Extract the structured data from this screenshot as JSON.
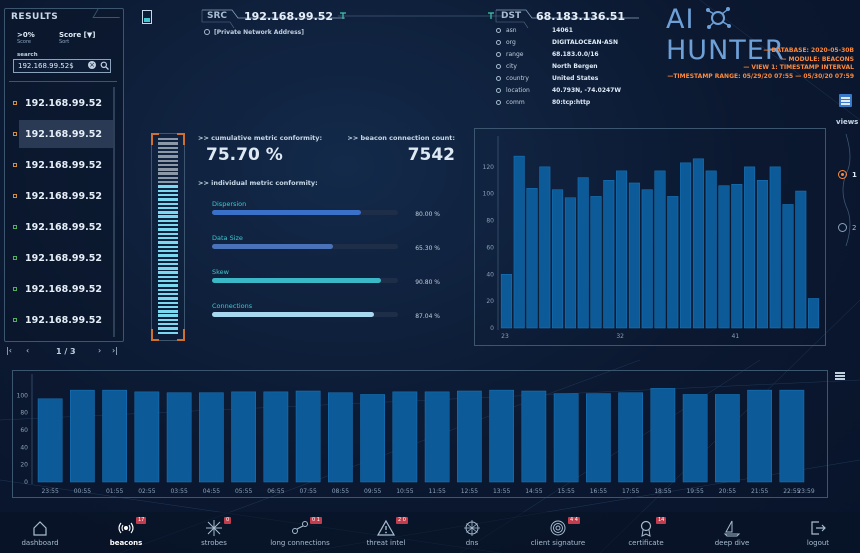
{
  "results": {
    "title": "RESULTS",
    "filter": {
      "value": ">0%",
      "label": "Score"
    },
    "sort": {
      "value": "Score [▼]",
      "label": "Sort"
    },
    "search": {
      "label": "search",
      "value": "192.168.99.52$"
    },
    "items": [
      "192.168.99.52",
      "192.168.99.52",
      "192.168.99.52",
      "192.168.99.52",
      "192.168.99.52",
      "192.168.99.52",
      "192.168.99.52",
      "192.168.99.52"
    ],
    "pager": "1 / 3"
  },
  "header": {
    "src_label": "SRC",
    "src_ip": "192.168.99.52",
    "src_note": "[Private Network Address]",
    "dst_label": "DST",
    "dst_ip": "68.183.136.51",
    "dst_geo": [
      {
        "k": "asn",
        "v": "14061"
      },
      {
        "k": "org",
        "v": "DIGITALOCEAN-ASN"
      },
      {
        "k": "range",
        "v": "68.183.0.0/16"
      },
      {
        "k": "city",
        "v": "North Bergen"
      },
      {
        "k": "country",
        "v": "United States"
      },
      {
        "k": "location",
        "v": "40.793N, -74.0247W"
      },
      {
        "k": "comm",
        "v": "80:tcp:http"
      }
    ]
  },
  "brand": {
    "left": "AI",
    "right": "HUNTER",
    "color": "#6ea0d8"
  },
  "context": {
    "database": "— DATABASE: 2020-05-30B",
    "module": "— MODULE: BEACONS",
    "view": "— VIEW 1: TIMESTAMP INTERVAL",
    "range": "—TIMESTAMP RANGE: 05/29/20 07:55 — 05/30/20 07:59",
    "color": "#ff8a3a"
  },
  "views": {
    "label": "views",
    "options": [
      "1",
      "2"
    ],
    "selected": "1"
  },
  "metrics": {
    "cumulative_label": ">> cumulative metric conformity:",
    "cumulative_value": "75.70 %",
    "count_label": ">> beacon connection count:",
    "count_value": "7542",
    "individual_label": ">> individual metric conformity:",
    "bars": [
      {
        "name": "Dispersion",
        "value": 80.0,
        "pct": "80.00 %",
        "color": "#3a70c8"
      },
      {
        "name": "Data Size",
        "value": 65.3,
        "pct": "65.30 %",
        "color": "#4a72b8"
      },
      {
        "name": "Skew",
        "value": 90.8,
        "pct": "90.80 %",
        "color": "#3ab8c8"
      },
      {
        "name": "Connections",
        "value": 87.04,
        "pct": "87.04 %",
        "color": "#a8d8f0"
      }
    ],
    "gauge_level": 0.757
  },
  "chart_data": [
    {
      "type": "bar",
      "categories": [
        "23",
        "",
        "",
        "",
        "",
        "",
        "",
        "",
        "",
        "32",
        "",
        "",
        "",
        "",
        "",
        "",
        "",
        "",
        "41",
        "",
        "",
        "",
        "",
        "",
        ""
      ],
      "values": [
        40,
        128,
        104,
        120,
        103,
        97,
        112,
        98,
        110,
        117,
        108,
        103,
        117,
        98,
        123,
        126,
        117,
        106,
        107,
        120,
        110,
        120,
        92,
        102,
        22
      ],
      "ylim": [
        0,
        140
      ],
      "yticks": [
        0,
        20,
        40,
        60,
        80,
        100,
        120
      ],
      "grid": false
    },
    {
      "type": "bar",
      "categories": [
        "23:55",
        "00:55",
        "01:55",
        "02:55",
        "03:55",
        "04:55",
        "05:55",
        "06:55",
        "07:55",
        "08:55",
        "09:55",
        "10:55",
        "11:55",
        "12:55",
        "13:55",
        "14:55",
        "15:55",
        "16:55",
        "17:55",
        "18:55",
        "19:55",
        "20:55",
        "21:55",
        "22:55"
      ],
      "end_label": "23:59",
      "values": [
        96,
        106,
        106,
        104,
        103,
        103,
        104,
        104,
        105,
        103,
        101,
        104,
        104,
        105,
        106,
        105,
        102,
        102,
        103,
        108,
        101,
        101,
        106,
        106
      ],
      "ylim": [
        0,
        120
      ],
      "yticks": [
        0,
        20,
        40,
        60,
        80,
        100
      ],
      "grid": false
    }
  ],
  "nav": [
    {
      "id": "dashboard",
      "label": "dashboard",
      "badge": "",
      "active": false
    },
    {
      "id": "beacons",
      "label": "beacons",
      "badge": "17",
      "active": true
    },
    {
      "id": "strobes",
      "label": "strobes",
      "badge": "0",
      "active": false
    },
    {
      "id": "long-connections",
      "label": "long connections",
      "badge": "0 1",
      "active": false
    },
    {
      "id": "threat-intel",
      "label": "threat intel",
      "badge": "2 0",
      "active": false
    },
    {
      "id": "dns",
      "label": "dns",
      "badge": "",
      "active": false
    },
    {
      "id": "client-signature",
      "label": "client signature",
      "badge": "4 4",
      "active": false
    },
    {
      "id": "certificate",
      "label": "certificate",
      "badge": "14",
      "active": false
    },
    {
      "id": "deep-dive",
      "label": "deep dive",
      "badge": "",
      "active": false
    },
    {
      "id": "logout",
      "label": "logout",
      "badge": "",
      "active": false
    }
  ],
  "colors": {
    "bar": "#0d5a98",
    "bar_edge": "#1a7ac0",
    "panel_border": "#3c5670"
  }
}
